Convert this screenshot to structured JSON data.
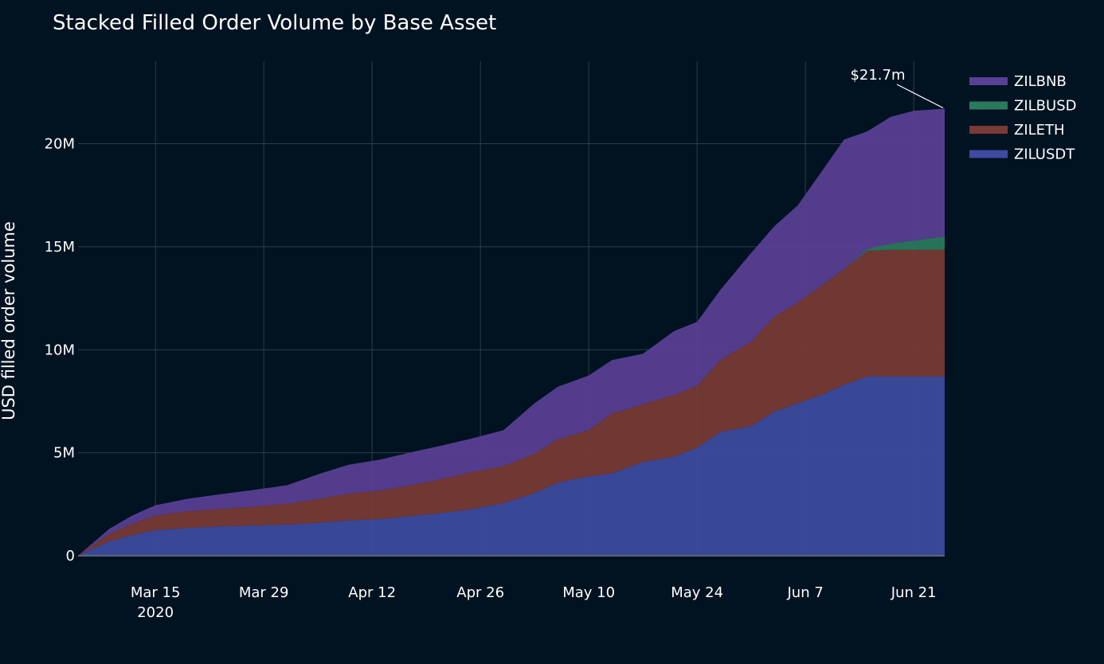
{
  "chart_data": {
    "type": "area",
    "stacked": true,
    "title": "Stacked Filled Order Volume by Base Asset",
    "xlabel": "",
    "ylabel": "USD filled order volume",
    "x_ticks": [
      {
        "date": "2020-03-15",
        "label": "Mar 15",
        "sublabel": "2020"
      },
      {
        "date": "2020-03-29",
        "label": "Mar 29"
      },
      {
        "date": "2020-04-12",
        "label": "Apr 12"
      },
      {
        "date": "2020-04-26",
        "label": "Apr 26"
      },
      {
        "date": "2020-05-10",
        "label": "May 10"
      },
      {
        "date": "2020-05-24",
        "label": "May 24"
      },
      {
        "date": "2020-06-07",
        "label": "Jun 7"
      },
      {
        "date": "2020-06-21",
        "label": "Jun 21"
      }
    ],
    "y_ticks": [
      {
        "value": 0,
        "label": "0"
      },
      {
        "value": 5000000,
        "label": "5M"
      },
      {
        "value": 10000000,
        "label": "10M"
      },
      {
        "value": 15000000,
        "label": "15M"
      },
      {
        "value": 20000000,
        "label": "20M"
      }
    ],
    "xlim": [
      "2020-03-05",
      "2020-06-25"
    ],
    "ylim": [
      0,
      24000000
    ],
    "grid": true,
    "legend_position": "top-right",
    "x": [
      "2020-03-05",
      "2020-03-09",
      "2020-03-12",
      "2020-03-15",
      "2020-03-19",
      "2020-03-23",
      "2020-03-27",
      "2020-04-01",
      "2020-04-05",
      "2020-04-09",
      "2020-04-13",
      "2020-04-17",
      "2020-04-21",
      "2020-04-25",
      "2020-04-29",
      "2020-05-03",
      "2020-05-06",
      "2020-05-10",
      "2020-05-13",
      "2020-05-17",
      "2020-05-21",
      "2020-05-24",
      "2020-05-27",
      "2020-05-31",
      "2020-06-03",
      "2020-06-06",
      "2020-06-09",
      "2020-06-12",
      "2020-06-15",
      "2020-06-18",
      "2020-06-21",
      "2020-06-25"
    ],
    "series": [
      {
        "name": "ZILUSDT",
        "color": "#3d4ba0",
        "values": [
          0,
          700000,
          1000000,
          1250000,
          1350000,
          1420000,
          1460000,
          1520000,
          1600000,
          1720000,
          1780000,
          1920000,
          2080000,
          2270000,
          2550000,
          3050000,
          3550000,
          3850000,
          4000000,
          4550000,
          4800000,
          5250000,
          6000000,
          6300000,
          7000000,
          7400000,
          7800000,
          8300000,
          8700000,
          8700000,
          8700000,
          8700000
        ]
      },
      {
        "name": "ZILETH",
        "color": "#7a3a35",
        "values": [
          0,
          350000,
          550000,
          700000,
          800000,
          850000,
          900000,
          1000000,
          1150000,
          1300000,
          1380000,
          1500000,
          1650000,
          1800000,
          1800000,
          1900000,
          2100000,
          2250000,
          2900000,
          2800000,
          3000000,
          3000000,
          3500000,
          4100000,
          4600000,
          4900000,
          5300000,
          5600000,
          6100000,
          6150000,
          6150000,
          6150000
        ]
      },
      {
        "name": "ZILBUSD",
        "color": "#2a7a5e",
        "values": [
          0,
          0,
          0,
          0,
          0,
          0,
          0,
          0,
          0,
          0,
          0,
          0,
          0,
          0,
          0,
          0,
          0,
          0,
          0,
          0,
          0,
          0,
          0,
          0,
          0,
          0,
          0,
          0,
          100000,
          300000,
          450000,
          650000
        ]
      },
      {
        "name": "ZILBNB",
        "color": "#5a3f96",
        "values": [
          0,
          250000,
          400000,
          500000,
          600000,
          700000,
          800000,
          900000,
          1200000,
          1400000,
          1500000,
          1600000,
          1620000,
          1630000,
          1750000,
          2450000,
          2550000,
          2650000,
          2600000,
          2450000,
          3100000,
          3100000,
          3400000,
          4300000,
          4400000,
          4700000,
          5500000,
          6300000,
          5700000,
          6150000,
          6300000,
          6200000
        ]
      }
    ],
    "total_annotation": "$21.7m"
  }
}
